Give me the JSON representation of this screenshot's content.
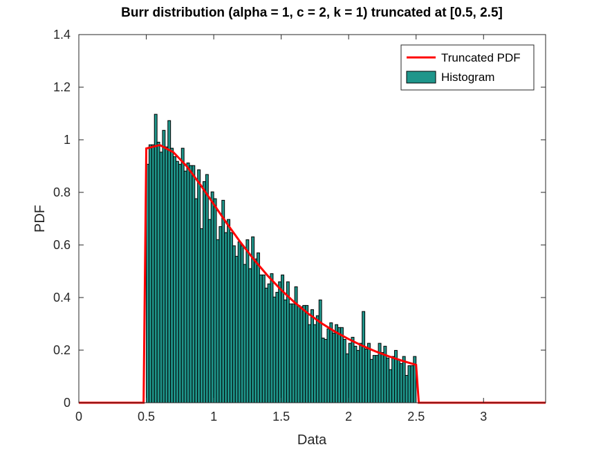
{
  "chart_data": {
    "type": "bar",
    "title": "Burr distribution (alpha = 1, c = 2, k = 1) truncated at [0.5, 2.5]",
    "xlabel": "Data",
    "ylabel": "PDF",
    "xlim": [
      0,
      3.46
    ],
    "ylim": [
      0,
      1.4
    ],
    "xticks": [
      "0",
      "0.5",
      "1",
      "1.5",
      "2",
      "2.5",
      "3"
    ],
    "xtick_values": [
      0,
      0.5,
      1,
      1.5,
      2,
      2.5,
      3
    ],
    "yticks": [
      "0",
      "0.2",
      "0.4",
      "0.6",
      "0.8",
      "1",
      "1.2",
      "1.4"
    ],
    "ytick_values": [
      0,
      0.2,
      0.4,
      0.6,
      0.8,
      1,
      1.2,
      1.4
    ],
    "grid": false,
    "legend_position": "top-right",
    "colors": {
      "line": "#ff0000",
      "bars": "#1f968b",
      "bar_edge": "#000000"
    },
    "series": [
      {
        "name": "Truncated PDF",
        "type": "line",
        "x": [
          0,
          0.48,
          0.5,
          0.6,
          0.7,
          0.8,
          0.9,
          1.0,
          1.1,
          1.2,
          1.3,
          1.4,
          1.5,
          1.6,
          1.7,
          1.8,
          1.9,
          2.0,
          2.1,
          2.2,
          2.3,
          2.4,
          2.5,
          2.52,
          3.46
        ],
        "y": [
          0,
          0,
          0.967,
          0.98,
          0.953,
          0.899,
          0.83,
          0.755,
          0.68,
          0.609,
          0.543,
          0.483,
          0.429,
          0.381,
          0.339,
          0.302,
          0.27,
          0.242,
          0.217,
          0.195,
          0.176,
          0.159,
          0.144,
          0,
          0
        ]
      },
      {
        "name": "Histogram",
        "type": "bar",
        "bin_start": 0.5,
        "bin_width": 0.02,
        "values": [
          0.907,
          0.981,
          0.981,
          1.097,
          0.991,
          0.953,
          1.036,
          0.973,
          1.073,
          0.968,
          0.936,
          0.918,
          0.907,
          0.968,
          0.881,
          0.912,
          0.902,
          0.902,
          0.776,
          0.886,
          0.662,
          0.841,
          0.868,
          0.697,
          0.802,
          0.776,
          0.62,
          0.67,
          0.77,
          0.647,
          0.697,
          0.647,
          0.597,
          0.557,
          0.612,
          0.597,
          0.526,
          0.62,
          0.51,
          0.631,
          0.547,
          0.57,
          0.486,
          0.486,
          0.436,
          0.452,
          0.491,
          0.402,
          0.42,
          0.46,
          0.486,
          0.391,
          0.46,
          0.376,
          0.376,
          0.441,
          0.37,
          0.365,
          0.37,
          0.37,
          0.297,
          0.354,
          0.297,
          0.331,
          0.391,
          0.246,
          0.241,
          0.281,
          0.304,
          0.265,
          0.297,
          0.286,
          0.286,
          0.241,
          0.186,
          0.226,
          0.249,
          0.215,
          0.199,
          0.226,
          0.347,
          0.204,
          0.226,
          0.165,
          0.18,
          0.18,
          0.226,
          0.191,
          0.215,
          0.17,
          0.126,
          0.176,
          0.199,
          0.165,
          0.149,
          0.176,
          0.104,
          0.141,
          0.141,
          0.176
        ]
      }
    ]
  }
}
